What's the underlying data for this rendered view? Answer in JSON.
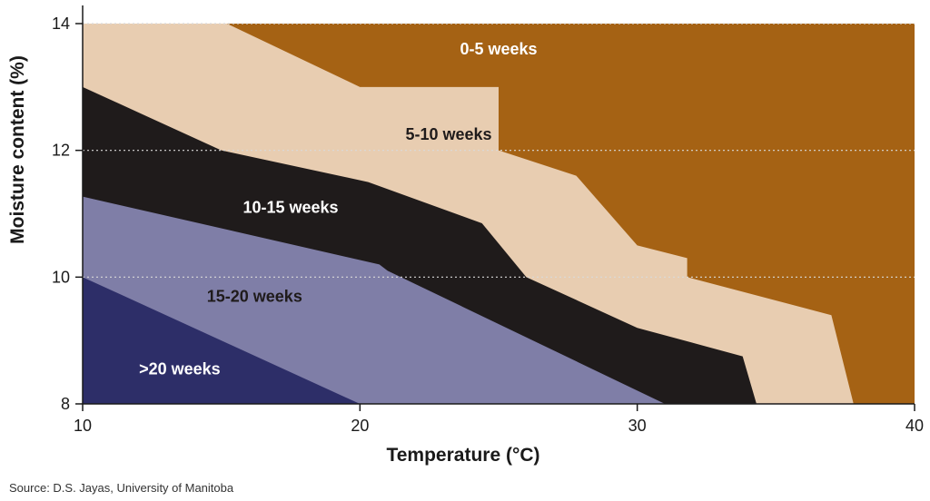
{
  "chart_data": {
    "type": "area",
    "xlabel": "Temperature (°C)",
    "ylabel": "Moisture content (%)",
    "xlim": [
      10,
      40
    ],
    "ylim": [
      8,
      14
    ],
    "x_ticks": [
      "10",
      "20",
      "30",
      "40"
    ],
    "y_ticks": [
      "8",
      "10",
      "12",
      "14"
    ],
    "grid": "horizontal dotted at 10, 12, 14",
    "zones": [
      {
        "label": "0-5 weeks",
        "color": "#a56214",
        "label_color": "#ffffff",
        "label_pos": [
          25,
          13.6
        ],
        "points": [
          [
            10,
            8
          ],
          [
            40,
            8
          ],
          [
            40,
            14
          ],
          [
            10,
            14
          ]
        ]
      },
      {
        "label": "5-10 weeks",
        "color": "#e8cdb1",
        "label_color": "#1f1b1b",
        "label_pos": [
          23.2,
          12.25
        ],
        "points": [
          [
            10,
            8
          ],
          [
            37.8,
            8
          ],
          [
            37,
            9.4
          ],
          [
            31.8,
            10
          ],
          [
            31.8,
            10.3
          ],
          [
            30,
            10.5
          ],
          [
            27.8,
            11.6
          ],
          [
            25,
            12
          ],
          [
            25,
            13
          ],
          [
            20,
            13
          ],
          [
            15.2,
            14
          ],
          [
            10,
            14
          ]
        ]
      },
      {
        "label": "10-15 weeks",
        "color": "#1f1b1b",
        "label_color": "#ffffff",
        "label_pos": [
          17.5,
          11.1
        ],
        "points": [
          [
            10,
            8
          ],
          [
            34.3,
            8
          ],
          [
            33.8,
            8.75
          ],
          [
            30,
            9.2
          ],
          [
            26,
            10
          ],
          [
            24.4,
            10.85
          ],
          [
            20.3,
            11.5
          ],
          [
            15,
            12
          ],
          [
            10,
            13
          ]
        ]
      },
      {
        "label": "15-20 weeks",
        "color": "#7f7ea7",
        "label_color": "#1f1b1b",
        "label_pos": [
          16.2,
          9.7
        ],
        "points": [
          [
            10,
            8
          ],
          [
            31,
            8
          ],
          [
            21,
            10.1
          ],
          [
            20.7,
            10.2
          ],
          [
            10,
            11.27
          ]
        ]
      },
      {
        "label": ">20 weeks",
        "color": "#2d2e68",
        "label_color": "#ffffff",
        "label_pos": [
          13.5,
          8.55
        ],
        "points": [
          [
            10,
            8
          ],
          [
            20,
            8
          ],
          [
            10,
            10
          ]
        ]
      }
    ]
  },
  "source": "Source: D.S. Jayas, University of Manitoba"
}
